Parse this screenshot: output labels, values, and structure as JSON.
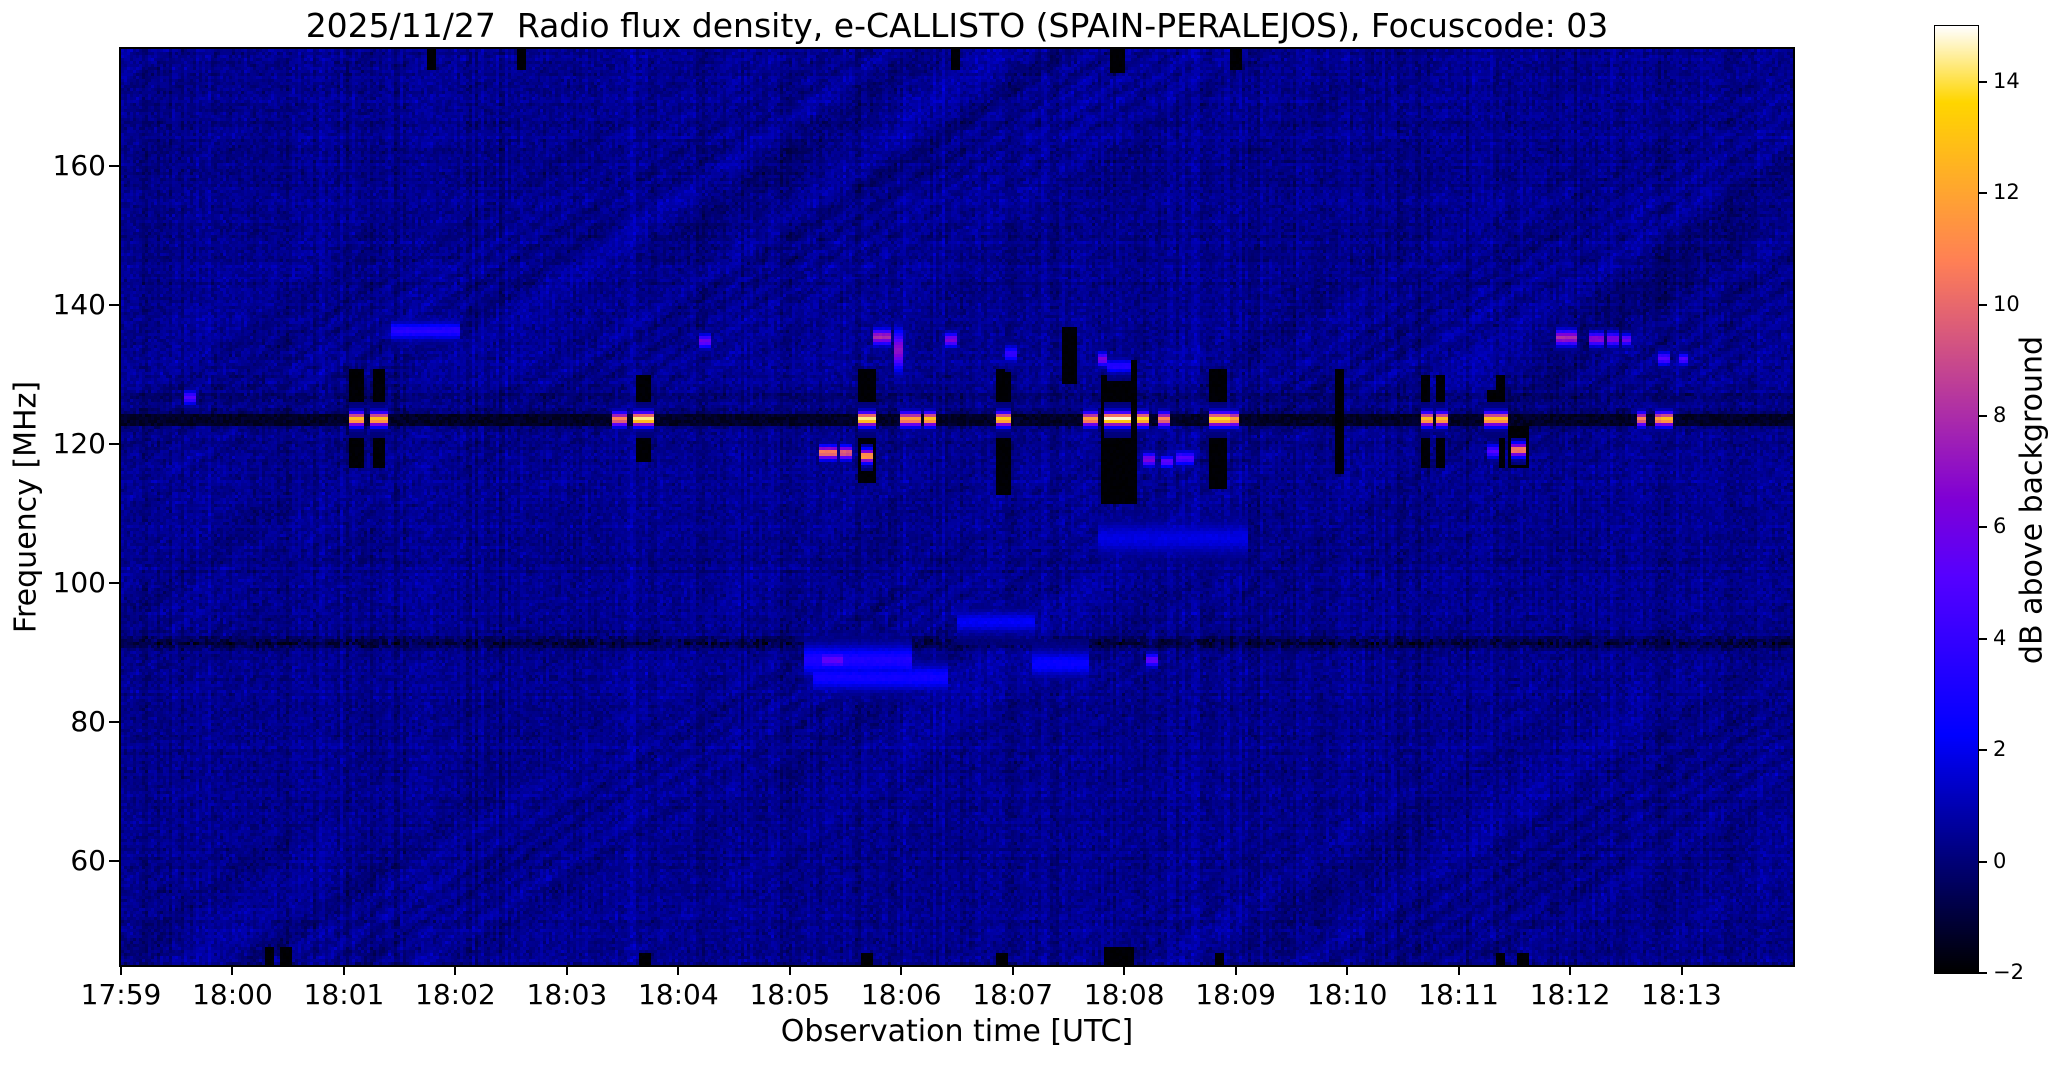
{
  "chart_data": {
    "type": "heatmap",
    "title": "2025/11/27  Radio flux density, e-CALLISTO (SPAIN-PERALEJOS), Focuscode: 03",
    "xlabel": "Observation time [UTC]",
    "ylabel": "Frequency [MHz]",
    "x_ticks": [
      "17:59",
      "18:00",
      "18:01",
      "18:02",
      "18:03",
      "18:04",
      "18:05",
      "18:06",
      "18:07",
      "18:08",
      "18:09",
      "18:10",
      "18:11",
      "18:12",
      "18:13"
    ],
    "x_range_utc": [
      "17:59:00",
      "18:14:00"
    ],
    "x_span_seconds": 900,
    "y_ticks": [
      160,
      140,
      120,
      100,
      80,
      60
    ],
    "y_range_mhz": [
      45.1,
      176.9
    ],
    "grid": false,
    "legend": "none",
    "colorbar": {
      "label": "dB above background",
      "tick_values": [
        14,
        12,
        10,
        8,
        6,
        4,
        2,
        0,
        -2
      ],
      "tick_labels": [
        "14",
        "12",
        "10",
        "8",
        "6",
        "4",
        "2",
        "0",
        "−2"
      ],
      "range_db": [
        -2,
        15
      ],
      "colormap": "gnuplot2"
    },
    "background_db": 0.35,
    "rfi_bands": [
      {
        "freq_mhz": 123.6,
        "half_width_mhz": 1.8,
        "db": -1.7,
        "note": "dark horizontal absorption line across full duration"
      },
      {
        "freq_mhz": 127.0,
        "half_width_mhz": 0.5,
        "db": -0.6,
        "note": "faint dark line"
      },
      {
        "freq_mhz": 91.5,
        "half_width_mhz": 1.3,
        "db": -1.2,
        "note": "speckled dark band"
      }
    ],
    "bursts_on_123mhz_line": [
      {
        "t_s": 126,
        "w_s": 7,
        "db": 13
      },
      {
        "t_s": 138,
        "w_s": 7,
        "db": 13
      },
      {
        "t_s": 268,
        "w_s": 6,
        "db": 11
      },
      {
        "t_s": 281,
        "w_s": 9,
        "db": 14.5
      },
      {
        "t_s": 401,
        "w_s": 8,
        "db": 14.5
      },
      {
        "t_s": 424,
        "w_s": 9,
        "db": 12
      },
      {
        "t_s": 434,
        "w_s": 5,
        "db": 13
      },
      {
        "t_s": 474,
        "w_s": 7,
        "db": 13.5
      },
      {
        "t_s": 521,
        "w_s": 5,
        "db": 12
      },
      {
        "t_s": 536,
        "w_s": 13,
        "db": 15
      },
      {
        "t_s": 549,
        "w_s": 5,
        "db": 14
      },
      {
        "t_s": 561,
        "w_s": 5,
        "db": 11
      },
      {
        "t_s": 590,
        "w_s": 9,
        "db": 14
      },
      {
        "t_s": 598,
        "w_s": 4,
        "db": 12
      },
      {
        "t_s": 702,
        "w_s": 5,
        "db": 13
      },
      {
        "t_s": 710,
        "w_s": 5,
        "db": 13
      },
      {
        "t_s": 737,
        "w_s": 5,
        "db": 13
      },
      {
        "t_s": 742,
        "w_s": 5,
        "db": 13
      },
      {
        "t_s": 818,
        "w_s": 4,
        "db": 11
      },
      {
        "t_s": 827,
        "w_s": 4,
        "db": 12
      },
      {
        "t_s": 832,
        "w_s": 5,
        "db": 13
      }
    ],
    "dropouts_black": [
      {
        "t_s": 126,
        "w_s": 6,
        "f0": 117,
        "f1": 131
      },
      {
        "t_s": 138,
        "w_s": 6,
        "f0": 117,
        "f1": 131
      },
      {
        "t_s": 281,
        "w_s": 7,
        "f0": 118,
        "f1": 130
      },
      {
        "t_s": 401,
        "w_s": 7,
        "f0": 115,
        "f1": 131
      },
      {
        "t_s": 474,
        "w_s": 7,
        "f0": 113,
        "f1": 131
      },
      {
        "t_s": 508,
        "w_s": 3,
        "f0": 129,
        "f1": 137
      },
      {
        "t_s": 512,
        "w_s": 3,
        "f0": 129,
        "f1": 137
      },
      {
        "t_s": 536,
        "w_s": 18,
        "f0": 112,
        "f1": 132
      },
      {
        "t_s": 590,
        "w_s": 8,
        "f0": 114,
        "f1": 131
      },
      {
        "t_s": 655,
        "w_s": 3,
        "f0": 116,
        "f1": 131
      },
      {
        "t_s": 702,
        "w_s": 4,
        "f0": 117,
        "f1": 130
      },
      {
        "t_s": 710,
        "w_s": 4,
        "f0": 117,
        "f1": 130
      },
      {
        "t_s": 737,
        "w_s": 3,
        "f0": 120,
        "f1": 128
      },
      {
        "t_s": 742,
        "w_s": 4,
        "f0": 117,
        "f1": 130
      },
      {
        "t_s": 752,
        "w_s": 9,
        "f0": 117,
        "f1": 122.5
      },
      {
        "t_s": 79,
        "w_s": 4,
        "f0": 45,
        "f1": 47.5
      },
      {
        "t_s": 88,
        "w_s": 4,
        "f0": 45,
        "f1": 47.5
      },
      {
        "t_s": 281,
        "w_s": 5,
        "f0": 45,
        "f1": 47
      },
      {
        "t_s": 401,
        "w_s": 5,
        "f0": 45,
        "f1": 47
      },
      {
        "t_s": 474,
        "w_s": 5,
        "f0": 45,
        "f1": 47
      },
      {
        "t_s": 536,
        "w_s": 14,
        "f0": 45,
        "f1": 47.5
      },
      {
        "t_s": 590,
        "w_s": 4,
        "f0": 45,
        "f1": 47
      },
      {
        "t_s": 742,
        "w_s": 4,
        "f0": 45,
        "f1": 47
      },
      {
        "t_s": 754,
        "w_s": 5,
        "f0": 45,
        "f1": 47
      },
      {
        "t_s": 166,
        "w_s": 3,
        "f0": 174.5,
        "f1": 177
      },
      {
        "t_s": 215,
        "w_s": 3,
        "f0": 174.5,
        "f1": 177
      },
      {
        "t_s": 448,
        "w_s": 4,
        "f0": 174.5,
        "f1": 177
      },
      {
        "t_s": 536,
        "w_s": 6,
        "f0": 174,
        "f1": 177
      },
      {
        "t_s": 599,
        "w_s": 4,
        "f0": 174.5,
        "f1": 177
      }
    ],
    "emission_spots": [
      {
        "t_s": 36,
        "w_s": 4,
        "f": 126.7,
        "df": 0.6,
        "db": 5
      },
      {
        "t_s": 163,
        "w_s": 36,
        "f": 136.3,
        "df": 0.8,
        "db": 3.5
      },
      {
        "t_s": 314,
        "w_s": 5,
        "f": 134.8,
        "df": 0.6,
        "db": 6
      },
      {
        "t_s": 409,
        "w_s": 7,
        "f": 135.4,
        "df": 0.7,
        "db": 8
      },
      {
        "t_s": 418,
        "w_s": 4,
        "f": 133.5,
        "df": 1.8,
        "db": 7
      },
      {
        "t_s": 446,
        "w_s": 4,
        "f": 135.0,
        "df": 0.6,
        "db": 6.5
      },
      {
        "t_s": 478,
        "w_s": 6,
        "f": 133.0,
        "df": 0.7,
        "db": 4
      },
      {
        "t_s": 527,
        "w_s": 4,
        "f": 132.2,
        "df": 0.6,
        "db": 6.5
      },
      {
        "t_s": 536,
        "w_s": 11,
        "f": 131.2,
        "df": 0.6,
        "db": 3.5
      },
      {
        "t_s": 777,
        "w_s": 10,
        "f": 135.3,
        "df": 0.7,
        "db": 8
      },
      {
        "t_s": 793,
        "w_s": 6,
        "f": 135.1,
        "df": 0.6,
        "db": 7
      },
      {
        "t_s": 802,
        "w_s": 5,
        "f": 135.1,
        "df": 0.6,
        "db": 6.5
      },
      {
        "t_s": 809,
        "w_s": 3,
        "f": 135.0,
        "df": 0.5,
        "db": 6
      },
      {
        "t_s": 830,
        "w_s": 5,
        "f": 132.3,
        "df": 0.6,
        "db": 5
      },
      {
        "t_s": 841,
        "w_s": 3,
        "f": 132.2,
        "df": 0.5,
        "db": 5
      },
      {
        "t_s": 380,
        "w_s": 7,
        "f": 118.8,
        "df": 0.6,
        "db": 11
      },
      {
        "t_s": 390,
        "w_s": 5,
        "f": 118.8,
        "df": 0.6,
        "db": 10
      },
      {
        "t_s": 401,
        "w_s": 6,
        "f": 118.3,
        "df": 0.6,
        "db": 12
      },
      {
        "t_s": 752,
        "w_s": 7,
        "f": 119.2,
        "df": 0.6,
        "db": 11
      },
      {
        "t_s": 552,
        "w_s": 5,
        "f": 117.8,
        "df": 0.6,
        "db": 6.5
      },
      {
        "t_s": 562,
        "w_s": 4,
        "f": 117.5,
        "df": 0.5,
        "db": 5.5
      },
      {
        "t_s": 572,
        "w_s": 8,
        "f": 118.0,
        "df": 0.6,
        "db": 5
      },
      {
        "t_s": 738,
        "w_s": 4,
        "f": 119.0,
        "df": 0.6,
        "db": 5
      },
      {
        "t_s": 382,
        "w_s": 10,
        "f": 89.0,
        "df": 0.8,
        "db": 5.5
      },
      {
        "t_s": 554,
        "w_s": 4,
        "f": 89.0,
        "df": 0.6,
        "db": 5.5
      },
      {
        "t_s": 396,
        "w_s": 55,
        "f": 89.0,
        "df": 1.4,
        "db": 3.2
      },
      {
        "t_s": 408,
        "w_s": 70,
        "f": 86.5,
        "df": 1.2,
        "db": 2.8
      },
      {
        "t_s": 470,
        "w_s": 40,
        "f": 94.5,
        "df": 1.0,
        "db": 2.2
      },
      {
        "t_s": 505,
        "w_s": 30,
        "f": 88.5,
        "df": 1.2,
        "db": 2.5
      },
      {
        "t_s": 565,
        "w_s": 80,
        "f": 106.5,
        "df": 1.5,
        "db": 1.8
      }
    ]
  }
}
